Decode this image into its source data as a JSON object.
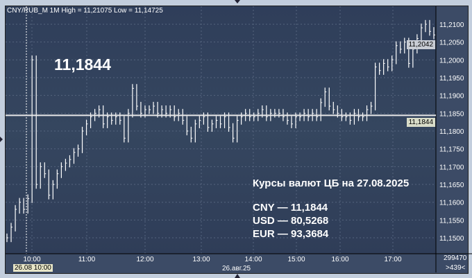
{
  "header": {
    "title": "CNY/RUB_M 1M High = 11,21075 Low = 11,14725"
  },
  "price_label": "11,1844",
  "annotation": {
    "title": "Курсы валют ЦБ на 27.08.2025",
    "lines": [
      "CNY — 11,1844",
      "USD — 80,5268",
      "EUR — 93,3684"
    ]
  },
  "current_price_tag": "11,2042",
  "level_tag": "11,1844",
  "volume": "299470",
  "bars_count": ">439<",
  "date_caption": "26.авг.25",
  "cursor_time": "26.08 10:00",
  "colors": {
    "background": "#33425d",
    "bars": "#ffffff",
    "level_line": "#e8e8e8",
    "tag": "#d8dcc8"
  },
  "chart_data": {
    "type": "line",
    "symbol": "CNY/RUB_M",
    "timeframe": "1M",
    "high": 11.21075,
    "low": 11.14725,
    "level": 11.1844,
    "y_ticks": [
      "11,2100",
      "11,2050",
      "11,2000",
      "11,1950",
      "11,1900",
      "11,1850",
      "11,1800",
      "11,1750",
      "11,1700",
      "11,1650",
      "11,1600",
      "11,1550",
      "11,1500"
    ],
    "ylim": [
      11.1465,
      11.2148
    ],
    "x_ticks": [
      "10:00",
      "11:00",
      "12:00",
      "13:00",
      "14:00",
      "15:00",
      "16:00",
      "17:00"
    ],
    "grid": true,
    "values": [
      11.15,
      11.153,
      11.158,
      11.16,
      11.158,
      11.161,
      11.2,
      11.165,
      11.17,
      11.168,
      11.162,
      11.165,
      11.168,
      11.17,
      11.171,
      11.172,
      11.174,
      11.175,
      11.18,
      11.182,
      11.184,
      11.185,
      11.186,
      11.182,
      11.184,
      11.183,
      11.184,
      11.183,
      11.178,
      11.185,
      11.192,
      11.187,
      11.185,
      11.186,
      11.186,
      11.187,
      11.185,
      11.186,
      11.185,
      11.186,
      11.184,
      11.185,
      11.183,
      11.18,
      11.178,
      11.182,
      11.183,
      11.184,
      11.181,
      11.182,
      11.183,
      11.182,
      11.184,
      11.181,
      11.178,
      11.183,
      11.184,
      11.185,
      11.184,
      11.184,
      11.185,
      11.186,
      11.184,
      11.185,
      11.185,
      11.185,
      11.184,
      11.183,
      11.182,
      11.184,
      11.184,
      11.185,
      11.184,
      11.185,
      11.184,
      11.188,
      11.191,
      11.187,
      11.186,
      11.185,
      11.184,
      11.184,
      11.183,
      11.185,
      11.184,
      11.184,
      11.186,
      11.187,
      11.198,
      11.197,
      11.199,
      11.198,
      11.2,
      11.204,
      11.203,
      11.205,
      11.199,
      11.203,
      11.206,
      11.209,
      11.21,
      11.208,
      11.207
    ]
  }
}
